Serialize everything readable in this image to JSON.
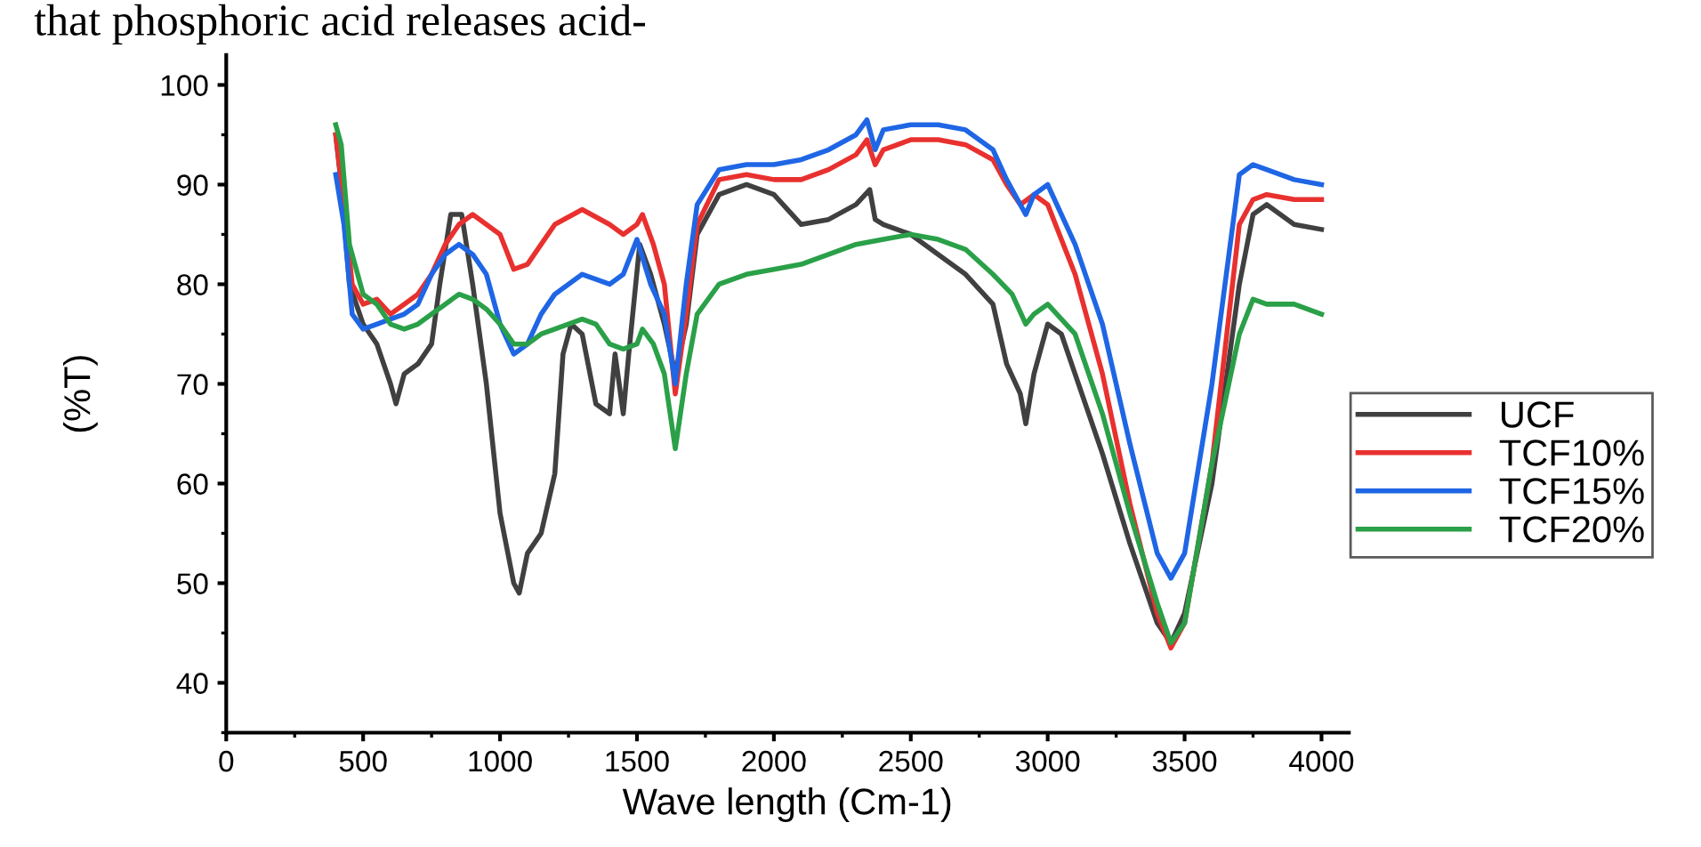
{
  "chart_data": {
    "type": "line",
    "xlabel": "Wave length (Cm-1)",
    "ylabel": "(%T)",
    "annotations": [
      "that phosphoric acid releases acid-"
    ],
    "xlim": [
      0,
      4100
    ],
    "ylim": [
      35,
      103
    ],
    "xticks": [
      0,
      500,
      1000,
      1500,
      2000,
      2500,
      3000,
      3500,
      4000
    ],
    "yticks": [
      40,
      50,
      60,
      70,
      80,
      90,
      100
    ],
    "grid": false,
    "legend": "right",
    "marker": "none",
    "line_style": "solid",
    "series": [
      {
        "name": "UCF",
        "color": "#404040",
        "x": [
          400,
          420,
          450,
          500,
          550,
          600,
          620,
          650,
          700,
          750,
          780,
          820,
          860,
          900,
          950,
          1000,
          1050,
          1070,
          1100,
          1150,
          1200,
          1230,
          1260,
          1300,
          1350,
          1400,
          1420,
          1450,
          1470,
          1510,
          1550,
          1600,
          1640,
          1680,
          1720,
          1800,
          1900,
          2000,
          2100,
          2200,
          2300,
          2350,
          2370,
          2400,
          2500,
          2600,
          2700,
          2800,
          2850,
          2900,
          2920,
          2950,
          3000,
          3050,
          3100,
          3200,
          3300,
          3400,
          3450,
          3500,
          3600,
          3700,
          3750,
          3800,
          3900,
          4000
        ],
        "values": [
          95,
          90,
          80,
          76,
          74,
          70,
          68,
          71,
          72,
          74,
          80,
          87,
          87,
          80,
          70,
          57,
          50,
          49,
          53,
          55,
          61,
          73,
          76,
          75,
          68,
          67,
          73,
          67,
          73,
          84,
          81,
          76,
          71,
          76,
          85,
          89,
          90,
          89,
          86,
          86.5,
          88,
          89.5,
          86.5,
          86,
          85,
          83,
          81,
          78,
          72,
          69,
          66,
          71,
          76,
          75,
          71,
          63,
          54,
          46,
          44,
          47,
          60,
          80,
          87,
          88,
          86,
          85.5
        ]
      },
      {
        "name": "TCF10%",
        "color": "#e8312f",
        "x": [
          400,
          430,
          460,
          500,
          550,
          600,
          650,
          700,
          750,
          800,
          850,
          900,
          950,
          1000,
          1050,
          1100,
          1150,
          1200,
          1300,
          1400,
          1450,
          1500,
          1520,
          1560,
          1600,
          1640,
          1680,
          1720,
          1800,
          1900,
          2000,
          2100,
          2200,
          2300,
          2340,
          2370,
          2400,
          2500,
          2600,
          2700,
          2800,
          2850,
          2900,
          2950,
          3000,
          3100,
          3200,
          3300,
          3400,
          3450,
          3500,
          3600,
          3700,
          3750,
          3800,
          3900,
          4000
        ],
        "values": [
          95,
          88,
          80,
          78,
          78.5,
          77,
          78,
          79,
          81,
          84,
          86,
          87,
          86,
          85,
          81.5,
          82,
          84,
          86,
          87.5,
          86,
          85,
          86,
          87,
          84,
          80,
          69,
          77,
          86,
          90.5,
          91,
          90.5,
          90.5,
          91.5,
          93,
          94.5,
          92,
          93.5,
          94.5,
          94.5,
          94,
          92.5,
          90,
          88,
          89,
          88,
          81,
          71,
          58,
          47,
          43.5,
          46,
          62,
          86,
          88.5,
          89,
          88.5,
          88.5
        ]
      },
      {
        "name": "TCF15%",
        "color": "#1f66e5",
        "x": [
          400,
          430,
          460,
          500,
          550,
          600,
          650,
          700,
          750,
          800,
          850,
          900,
          950,
          1000,
          1050,
          1100,
          1150,
          1200,
          1300,
          1400,
          1450,
          1500,
          1550,
          1600,
          1640,
          1680,
          1720,
          1800,
          1900,
          2000,
          2100,
          2200,
          2300,
          2340,
          2370,
          2400,
          2500,
          2600,
          2700,
          2800,
          2850,
          2920,
          2950,
          3000,
          3100,
          3200,
          3300,
          3400,
          3450,
          3500,
          3600,
          3700,
          3750,
          3800,
          3900,
          4000
        ],
        "values": [
          91,
          86,
          77,
          75.5,
          76,
          76.5,
          77,
          78,
          81,
          83,
          84,
          83,
          81,
          76,
          73,
          74,
          77,
          79,
          81,
          80,
          81,
          84.5,
          80,
          77,
          70,
          80,
          88,
          91.5,
          92,
          92,
          92.5,
          93.5,
          95,
          96.5,
          93.5,
          95.5,
          96,
          96,
          95.5,
          93.5,
          90.5,
          87,
          89,
          90,
          84,
          76,
          64,
          53,
          50.5,
          53,
          70,
          91,
          92,
          91.5,
          90.5,
          90
        ]
      },
      {
        "name": "TCF20%",
        "color": "#2aa048",
        "x": [
          400,
          420,
          450,
          500,
          550,
          600,
          650,
          700,
          750,
          800,
          850,
          900,
          950,
          1000,
          1050,
          1100,
          1150,
          1200,
          1300,
          1350,
          1400,
          1450,
          1500,
          1520,
          1560,
          1600,
          1640,
          1680,
          1720,
          1800,
          1900,
          2000,
          2100,
          2200,
          2300,
          2400,
          2500,
          2600,
          2700,
          2800,
          2870,
          2920,
          2950,
          3000,
          3100,
          3200,
          3300,
          3400,
          3450,
          3500,
          3600,
          3700,
          3750,
          3800,
          3900,
          4000
        ],
        "values": [
          96,
          94,
          84,
          79,
          78,
          76,
          75.5,
          76,
          77,
          78,
          79,
          78.5,
          77.5,
          76,
          74,
          74,
          75,
          75.5,
          76.5,
          76,
          74,
          73.5,
          74,
          75.5,
          74,
          71,
          63.5,
          71,
          77,
          80,
          81,
          81.5,
          82,
          83,
          84,
          84.5,
          85,
          84.5,
          83.5,
          81,
          79,
          76,
          77,
          78,
          75,
          67,
          57,
          48,
          44,
          46,
          62,
          75,
          78.5,
          78,
          78,
          77
        ]
      }
    ]
  }
}
